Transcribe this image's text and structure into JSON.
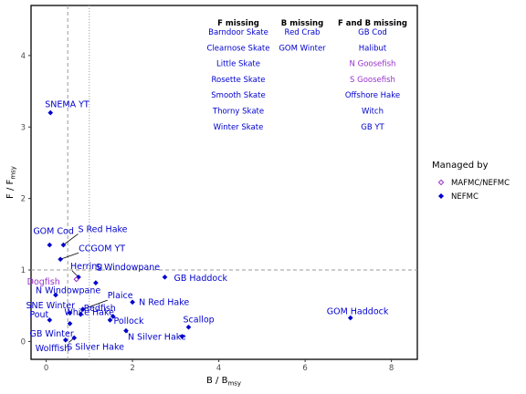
{
  "chart_data": {
    "type": "scatter",
    "xlabel_main": "B",
    "xlabel_sep": " / ",
    "xlabel_denom": "B",
    "xlabel_sub": "msy",
    "ylabel_main": "F",
    "ylabel_sep": " / ",
    "ylabel_denom": "F",
    "ylabel_sub": "msy",
    "xlim": [
      -0.35,
      8.6
    ],
    "ylim": [
      -0.25,
      4.7
    ],
    "x_ticks": [
      0,
      2,
      4,
      6,
      8
    ],
    "y_ticks": [
      0,
      1,
      2,
      3,
      4
    ],
    "reference_lines": {
      "vertical_dashed": 0.5,
      "vertical_dotted": 1.0,
      "horizontal_dashed": 1.0
    },
    "grid": false,
    "colors": {
      "NEFMC": "#0000cd",
      "MAFMC/NEFMC": "#9932cc"
    },
    "series": [
      {
        "name": "MAFMC/NEFMC",
        "marker": "open-diamond"
      },
      {
        "name": "NEFMC",
        "marker": "filled-diamond"
      }
    ],
    "points": [
      {
        "label": "SNEMA YT",
        "x": 0.1,
        "y": 3.2,
        "group": "NEFMC"
      },
      {
        "label": "GOM Cod",
        "x": 0.08,
        "y": 1.35,
        "group": "NEFMC"
      },
      {
        "label": "S Red Hake",
        "x": 0.4,
        "y": 1.35,
        "group": "NEFMC"
      },
      {
        "label": "CCGOM YT",
        "x": 0.33,
        "y": 1.15,
        "group": "NEFMC"
      },
      {
        "label": "Herring",
        "x": 0.75,
        "y": 0.9,
        "group": "NEFMC"
      },
      {
        "label": "Dogfish",
        "x": 0.7,
        "y": 0.87,
        "group": "MAFMC/NEFMC"
      },
      {
        "label": "S Windowpane",
        "x": 1.15,
        "y": 0.82,
        "group": "NEFMC"
      },
      {
        "label": "GB Haddock",
        "x": 2.75,
        "y": 0.9,
        "group": "NEFMC"
      },
      {
        "label": "N Windowpane",
        "x": 0.22,
        "y": 0.65,
        "group": "NEFMC"
      },
      {
        "label": "Plaice",
        "x": 0.85,
        "y": 0.45,
        "group": "NEFMC"
      },
      {
        "label": "SNE Winter",
        "x": 0.55,
        "y": 0.4,
        "group": "NEFMC"
      },
      {
        "label": "Redfish",
        "x": 1.55,
        "y": 0.35,
        "group": "NEFMC"
      },
      {
        "label": "N Red Hake",
        "x": 2.0,
        "y": 0.55,
        "group": "NEFMC"
      },
      {
        "label": "White Hake",
        "x": 0.8,
        "y": 0.38,
        "group": "NEFMC"
      },
      {
        "label": "Pout",
        "x": 0.08,
        "y": 0.3,
        "group": "NEFMC"
      },
      {
        "label": "Pollock",
        "x": 1.48,
        "y": 0.3,
        "group": "NEFMC"
      },
      {
        "label": "GB Winter",
        "x": 0.55,
        "y": 0.25,
        "group": "NEFMC"
      },
      {
        "label": "Scallop",
        "x": 3.3,
        "y": 0.2,
        "group": "NEFMC"
      },
      {
        "label": "N Silver Hake",
        "x": 1.85,
        "y": 0.15,
        "group": "NEFMC"
      },
      {
        "label": "GOM Haddock",
        "x": 7.05,
        "y": 0.33,
        "group": "NEFMC"
      },
      {
        "label": "Wolffish",
        "x": 0.45,
        "y": 0.02,
        "group": "NEFMC"
      },
      {
        "label": "S Silver Hake",
        "x": 0.65,
        "y": 0.05,
        "group": "NEFMC"
      },
      {
        "label": "",
        "x": 3.15,
        "y": 0.07,
        "group": "NEFMC"
      }
    ],
    "missing_table": {
      "headers": [
        "F missing",
        "B missing",
        "F and B missing"
      ],
      "columns": [
        [
          {
            "text": "Barndoor Skate",
            "group": "NEFMC"
          },
          {
            "text": "Clearnose Skate",
            "group": "NEFMC"
          },
          {
            "text": "Little Skate",
            "group": "NEFMC"
          },
          {
            "text": "Rosette Skate",
            "group": "NEFMC"
          },
          {
            "text": "Smooth Skate",
            "group": "NEFMC"
          },
          {
            "text": "Thorny Skate",
            "group": "NEFMC"
          },
          {
            "text": "Winter Skate",
            "group": "NEFMC"
          }
        ],
        [
          {
            "text": "Red Crab",
            "group": "NEFMC"
          },
          {
            "text": "GOM Winter",
            "group": "NEFMC"
          }
        ],
        [
          {
            "text": "GB Cod",
            "group": "NEFMC"
          },
          {
            "text": "Halibut",
            "group": "NEFMC"
          },
          {
            "text": "N Goosefish",
            "group": "MAFMC/NEFMC"
          },
          {
            "text": "S Goosefish",
            "group": "MAFMC/NEFMC"
          },
          {
            "text": "Offshore Hake",
            "group": "NEFMC"
          },
          {
            "text": "Witch",
            "group": "NEFMC"
          },
          {
            "text": "GB YT",
            "group": "NEFMC"
          }
        ]
      ]
    },
    "legend": {
      "title": "Managed by",
      "items": [
        {
          "label": "MAFMC/NEFMC",
          "group": "MAFMC/NEFMC"
        },
        {
          "label": "NEFMC",
          "group": "NEFMC"
        }
      ],
      "position": "right"
    }
  }
}
